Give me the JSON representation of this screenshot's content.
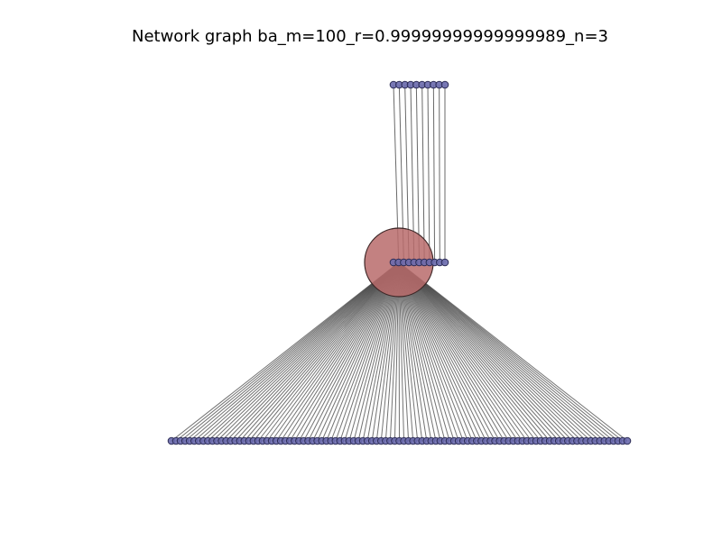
{
  "title": "Network graph ba_m=100_r=0.99999999999999989_n=3",
  "graph": {
    "type": "network",
    "hub": {
      "id": "hub",
      "degree": 101
    },
    "layers": [
      {
        "name": "top",
        "count": 10
      },
      {
        "name": "middle",
        "count": 11,
        "hub_index": 0
      },
      {
        "name": "bottom",
        "count": 101
      }
    ],
    "colors": {
      "node_fill": "#6a6aad",
      "node_stroke": "#2b2b55",
      "hub_fill": "#b86b6b",
      "hub_stroke": "#3d2626",
      "edge": "#444444"
    }
  }
}
